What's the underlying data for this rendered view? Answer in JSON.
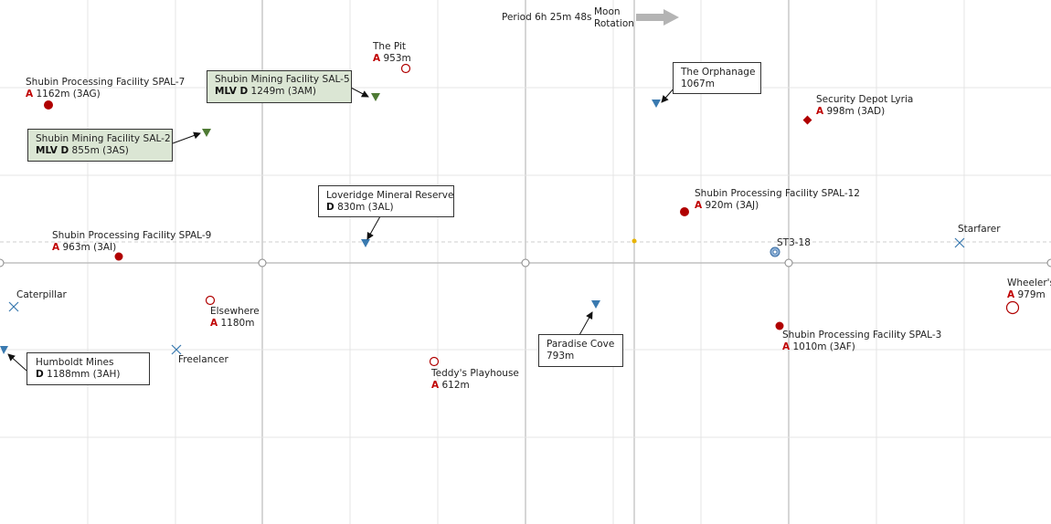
{
  "header": {
    "period": "Period 6h 25m 48s",
    "moon_rotation": [
      "Moon",
      "Rotation"
    ]
  },
  "colors": {
    "grid_major": "#c8c8c8",
    "grid_minor": "#e4e4e4",
    "outpost_red": "#b00000",
    "blue_marker": "#3a7ab0",
    "green_marker": "#4e7a34",
    "box_green": "#dbe6d4",
    "arrow_gray": "#b4b4b4",
    "sun_dot": "#e8b400"
  },
  "locations": [
    {
      "id": "spal7",
      "name": "Shubin Processing Facility SPAL-7",
      "code": "A",
      "value": "1162m (3AG)",
      "icon": "filled-circle-icon"
    },
    {
      "id": "thepit",
      "name": "The Pit",
      "code": "A",
      "value": "953m",
      "icon": "hollow-circle-icon"
    },
    {
      "id": "lyria",
      "name": "Security Depot Lyria",
      "code": "A",
      "value": "998m (3AD)",
      "icon": "diamond-icon"
    },
    {
      "id": "spal12",
      "name": "Shubin Processing Facility SPAL-12",
      "code": "A",
      "value": "920m (3AJ)",
      "icon": "filled-circle-icon"
    },
    {
      "id": "spal9",
      "name": "Shubin Processing Facility SPAL-9",
      "code": "A",
      "value": "963m (3AI)",
      "icon": "filled-circle-icon"
    },
    {
      "id": "st318",
      "name": "ST3-18",
      "icon": "station-icon"
    },
    {
      "id": "starfarer",
      "name": "Starfarer",
      "icon": "cross-icon"
    },
    {
      "id": "wheelers",
      "name": "Wheeler's",
      "code": "A",
      "value": "979m",
      "icon": "hollow-circle-icon"
    },
    {
      "id": "caterpillar",
      "name": "Caterpillar",
      "icon": "cross-icon"
    },
    {
      "id": "elsewhere",
      "name": "Elsewhere",
      "code": "A",
      "value": "1180m",
      "icon": "hollow-circle-icon"
    },
    {
      "id": "freelancer",
      "name": "Freelancer",
      "icon": "cross-icon"
    },
    {
      "id": "teddys",
      "name": "Teddy's Playhouse",
      "code": "A",
      "value": "612m",
      "icon": "hollow-circle-icon"
    },
    {
      "id": "spal3",
      "name": "Shubin Processing Facility SPAL-3",
      "code": "A",
      "value": "1010m (3AF)",
      "icon": "filled-circle-icon"
    }
  ],
  "callouts": [
    {
      "id": "sal5",
      "name": "Shubin Mining Facility SAL-5",
      "code": "MLV D",
      "value": "1249m (3AM)",
      "style": "green",
      "icon": "green-triangle-icon"
    },
    {
      "id": "sal2",
      "name": "Shubin Mining Facility SAL-2",
      "code": "MLV D",
      "value": "855m (3AS)",
      "style": "green",
      "icon": "green-triangle-icon"
    },
    {
      "id": "orphanage",
      "name": "The Orphanage",
      "value": "1067m",
      "style": "white",
      "icon": "blue-triangle-icon"
    },
    {
      "id": "loveridge",
      "name": "Loveridge Mineral Reserve",
      "code": "D",
      "value": "830m (3AL)",
      "style": "white",
      "icon": "blue-triangle-icon"
    },
    {
      "id": "paradise",
      "name": "Paradise Cove",
      "value": "793m",
      "style": "white",
      "icon": "blue-triangle-icon"
    },
    {
      "id": "humboldt",
      "name": "Humboldt Mines",
      "code": "D",
      "value": "1188mm (3AH)",
      "style": "white",
      "icon": "blue-triangle-icon"
    }
  ]
}
